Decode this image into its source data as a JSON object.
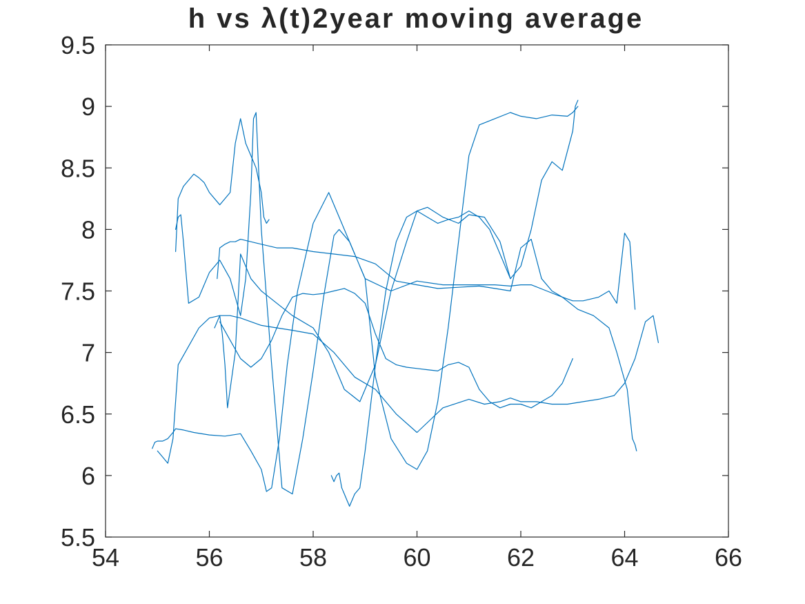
{
  "chart_data": {
    "type": "line",
    "title": "h vs λ(t)2year moving average",
    "xlabel": "",
    "ylabel": "",
    "xlim": [
      54,
      66
    ],
    "ylim": [
      5.5,
      9.5
    ],
    "xticks": [
      54,
      56,
      58,
      60,
      62,
      64,
      66
    ],
    "yticks": [
      5.5,
      6,
      6.5,
      7,
      7.5,
      8,
      8.5,
      9,
      9.5
    ],
    "xtick_labels": [
      "54",
      "56",
      "58",
      "60",
      "62",
      "64",
      "66"
    ],
    "ytick_labels": [
      "5.5",
      "6",
      "6.5",
      "7",
      "7.5",
      "8",
      "8.5",
      "9",
      "9.5"
    ],
    "grid": false,
    "legend": "none",
    "color": "#0072BD",
    "series": [
      {
        "x": [
          54.9,
          54.95,
          55.0,
          55.1,
          55.2,
          55.3,
          55.35,
          55.5,
          55.7,
          56.0,
          56.3,
          56.6,
          56.8,
          57.0,
          57.1,
          57.2,
          57.35,
          57.5,
          57.7,
          58.0,
          58.3,
          58.6,
          59.0,
          59.5,
          60.0,
          60.5,
          61.0,
          61.5,
          61.8,
          62.0,
          62.2,
          62.5,
          62.8,
          63.1,
          63.4,
          63.7,
          63.85,
          63.95,
          64.05,
          64.1,
          64.15,
          64.2,
          64.23
        ],
        "y": [
          6.22,
          6.27,
          6.28,
          6.28,
          6.3,
          6.35,
          6.38,
          6.37,
          6.35,
          6.33,
          6.32,
          6.34,
          6.2,
          6.05,
          5.87,
          5.9,
          6.3,
          6.9,
          7.5,
          8.05,
          8.3,
          8.0,
          7.6,
          7.5,
          7.58,
          7.55,
          7.55,
          7.55,
          7.54,
          7.55,
          7.55,
          7.5,
          7.45,
          7.35,
          7.3,
          7.2,
          7.0,
          6.85,
          6.7,
          6.5,
          6.3,
          6.25,
          6.2
        ]
      },
      {
        "x": [
          55.0,
          55.1,
          55.2,
          55.3,
          55.4,
          55.6,
          55.8,
          56.0,
          56.2,
          56.4,
          56.6,
          56.8,
          57.0,
          57.3,
          57.6,
          58.0,
          58.4,
          58.8,
          59.2,
          59.6,
          60.0,
          60.5,
          61.0,
          61.3,
          61.6,
          61.8,
          62.0,
          62.3,
          62.6,
          62.9,
          63.2,
          63.5,
          63.8,
          64.0,
          64.2,
          64.4,
          64.55,
          64.65
        ],
        "y": [
          6.2,
          6.15,
          6.1,
          6.3,
          6.9,
          7.05,
          7.2,
          7.28,
          7.3,
          7.3,
          7.28,
          7.25,
          7.22,
          7.2,
          7.18,
          7.15,
          7.0,
          6.8,
          6.7,
          6.5,
          6.35,
          6.55,
          6.62,
          6.58,
          6.6,
          6.63,
          6.6,
          6.6,
          6.58,
          6.58,
          6.6,
          6.62,
          6.65,
          6.75,
          6.95,
          7.25,
          7.3,
          7.08
        ]
      },
      {
        "x": [
          55.35,
          55.4,
          55.5,
          55.6,
          55.7,
          55.8,
          55.85,
          55.9,
          56.0,
          56.2,
          56.4,
          56.5,
          56.6,
          56.7,
          56.8,
          56.85,
          56.9,
          57.0,
          57.05,
          57.1,
          57.15
        ],
        "y": [
          7.82,
          8.25,
          8.35,
          8.4,
          8.45,
          8.42,
          8.4,
          8.38,
          8.3,
          8.2,
          8.3,
          8.7,
          8.9,
          8.7,
          8.6,
          8.55,
          8.5,
          8.3,
          8.1,
          8.05,
          8.08
        ]
      },
      {
        "x": [
          55.35,
          55.4,
          55.45,
          55.5,
          55.6,
          55.8,
          56.0,
          56.2,
          56.4,
          56.5,
          56.6,
          56.7,
          56.8,
          56.85,
          56.9,
          57.0,
          57.2,
          57.4,
          57.6,
          57.8,
          58.0,
          58.2,
          58.4,
          58.5,
          58.6,
          58.7,
          58.8
        ],
        "y": [
          8.0,
          8.1,
          8.12,
          7.9,
          7.4,
          7.45,
          7.65,
          7.75,
          7.6,
          7.45,
          7.3,
          7.6,
          8.3,
          8.9,
          8.95,
          8.0,
          6.9,
          5.9,
          5.85,
          6.3,
          6.85,
          7.45,
          7.95,
          8.0,
          7.95,
          7.9,
          7.8
        ]
      },
      {
        "x": [
          56.15,
          56.2,
          56.3,
          56.4,
          56.5,
          56.6,
          56.8,
          57.0,
          57.3,
          57.6,
          58.0,
          58.4,
          58.8,
          59.2,
          59.6,
          60.0,
          60.4,
          60.8,
          61.2,
          61.5,
          61.8,
          62.0,
          62.2,
          62.4,
          62.6,
          62.8,
          63.0,
          63.2,
          63.5,
          63.7,
          63.85,
          64.0,
          64.1,
          64.2
        ],
        "y": [
          7.6,
          7.85,
          7.88,
          7.9,
          7.9,
          7.92,
          7.9,
          7.88,
          7.85,
          7.85,
          7.82,
          7.8,
          7.78,
          7.72,
          7.58,
          7.55,
          7.52,
          7.53,
          7.54,
          7.52,
          7.5,
          7.85,
          7.92,
          7.6,
          7.5,
          7.45,
          7.42,
          7.42,
          7.45,
          7.5,
          7.4,
          7.97,
          7.9,
          7.35
        ]
      },
      {
        "x": [
          56.1,
          56.2,
          56.25,
          56.3,
          56.35,
          56.4,
          56.5,
          56.6,
          56.7,
          56.8,
          57.0,
          57.3,
          57.6,
          58.0,
          58.3,
          58.6,
          58.9,
          59.2,
          59.5,
          59.8,
          60.0,
          60.2,
          60.5,
          60.8,
          61.0,
          61.3,
          61.6,
          61.8
        ],
        "y": [
          7.2,
          7.3,
          7.15,
          6.9,
          6.55,
          6.7,
          7.0,
          7.8,
          7.7,
          7.6,
          7.5,
          7.4,
          7.3,
          7.2,
          7.0,
          6.7,
          6.6,
          6.9,
          7.5,
          7.9,
          8.15,
          8.18,
          8.1,
          8.05,
          8.12,
          8.1,
          7.9,
          7.6
        ]
      },
      {
        "x": [
          56.2,
          56.4,
          56.6,
          56.8,
          57.0,
          57.2,
          57.4,
          57.6,
          57.8,
          58.0,
          58.2,
          58.4,
          58.6,
          58.8,
          59.0,
          59.2,
          59.4,
          59.6,
          59.8,
          60.0,
          60.2,
          60.4,
          60.6,
          60.8,
          61.0,
          61.2,
          61.4,
          61.6,
          61.8,
          62.0,
          62.2,
          62.4,
          62.6,
          62.8,
          63.0
        ],
        "y": [
          7.25,
          7.1,
          6.95,
          6.88,
          6.95,
          7.1,
          7.3,
          7.45,
          7.48,
          7.47,
          7.48,
          7.5,
          7.52,
          7.48,
          7.4,
          7.15,
          6.95,
          6.9,
          6.88,
          6.87,
          6.86,
          6.85,
          6.9,
          6.92,
          6.88,
          6.7,
          6.6,
          6.55,
          6.58,
          6.58,
          6.55,
          6.6,
          6.65,
          6.75,
          6.95
        ]
      },
      {
        "x": [
          58.35,
          58.4,
          58.45,
          58.5,
          58.55,
          58.6,
          58.65,
          58.7,
          58.8,
          58.9,
          59.0,
          59.2,
          59.4,
          59.6,
          59.8,
          60.0,
          60.2,
          60.4,
          60.6,
          60.8,
          61.0,
          61.2,
          61.4,
          61.6,
          61.8,
          62.0,
          62.2,
          62.4,
          62.6,
          62.8,
          63.0,
          63.05,
          63.1
        ],
        "y": [
          6.0,
          5.95,
          6.0,
          6.02,
          5.9,
          5.85,
          5.8,
          5.75,
          5.85,
          5.9,
          6.2,
          6.9,
          7.5,
          7.9,
          8.1,
          8.15,
          8.1,
          8.05,
          8.08,
          8.1,
          8.15,
          8.1,
          8.0,
          7.8,
          7.6,
          7.7,
          8.0,
          8.4,
          8.55,
          8.48,
          8.8,
          9.0,
          9.05
        ]
      },
      {
        "x": [
          58.9,
          59.0,
          59.2,
          59.5,
          59.8,
          60.0,
          60.2,
          60.4,
          60.6,
          60.8,
          61.0,
          61.2,
          61.5,
          61.8,
          62.0,
          62.3,
          62.6,
          62.9,
          63.0,
          63.1
        ],
        "y": [
          7.7,
          7.6,
          6.8,
          6.3,
          6.1,
          6.05,
          6.2,
          6.6,
          7.2,
          7.9,
          8.6,
          8.85,
          8.9,
          8.95,
          8.92,
          8.9,
          8.93,
          8.92,
          8.95,
          9.0
        ]
      }
    ]
  }
}
